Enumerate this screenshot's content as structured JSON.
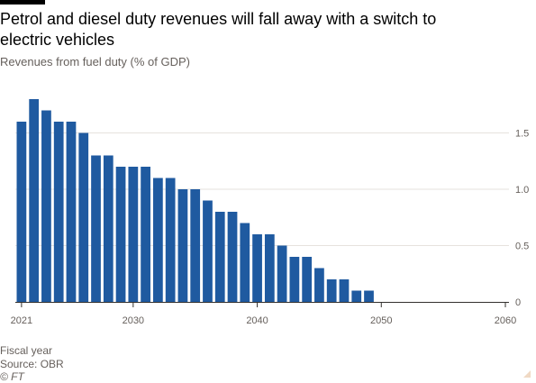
{
  "title": "Petrol and diesel duty revenues will fall away with a switch to electric vehicles",
  "subtitle": "Revenues from fuel duty (% of GDP)",
  "footer": {
    "xlabel": "Fiscal year",
    "source": "Source: OBR",
    "credit": "© FT"
  },
  "colors": {
    "bar": "#1f5aa0",
    "grid": "#e6e2de",
    "axis": "#33302e",
    "text": "#66605c"
  },
  "chart_data": {
    "type": "bar",
    "title": "Petrol and diesel duty revenues will fall away with a switch to electric vehicles",
    "subtitle": "Revenues from fuel duty (% of GDP)",
    "xlabel": "Fiscal year",
    "ylabel": "",
    "x": [
      2021,
      2022,
      2023,
      2024,
      2025,
      2026,
      2027,
      2028,
      2029,
      2030,
      2031,
      2032,
      2033,
      2034,
      2035,
      2036,
      2037,
      2038,
      2039,
      2040,
      2041,
      2042,
      2043,
      2044,
      2045,
      2046,
      2047,
      2048,
      2049,
      2050
    ],
    "values": [
      1.6,
      1.8,
      1.7,
      1.6,
      1.6,
      1.5,
      1.3,
      1.3,
      1.2,
      1.2,
      1.2,
      1.1,
      1.1,
      1.0,
      1.0,
      0.9,
      0.8,
      0.8,
      0.7,
      0.6,
      0.6,
      0.5,
      0.4,
      0.4,
      0.3,
      0.2,
      0.2,
      0.1,
      0.1,
      0.0
    ],
    "xlim": [
      2021,
      2060
    ],
    "xticks": [
      "2021",
      "2030",
      "2040",
      "2050",
      "2060"
    ],
    "ylim": [
      0,
      1.8
    ],
    "yticks": [
      "0",
      "0.5",
      "1.0",
      "1.5"
    ],
    "grid": true,
    "y_axis_side": "right"
  }
}
